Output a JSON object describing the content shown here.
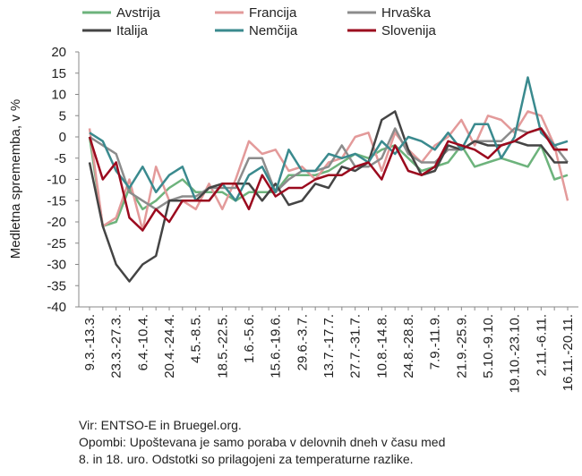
{
  "chart_data": {
    "type": "line",
    "y_label": "Medletna sprememba, v %",
    "categories": [
      "9.3.-13.3.",
      null,
      "23.3.-27.3.",
      null,
      "6.4.-10.4.",
      null,
      "20.4.-24.4.",
      null,
      "4.5.-8.5.",
      null,
      "18.5.-22.5.",
      null,
      "1.6.-5.6.",
      null,
      "15.6.-19.6.",
      null,
      "29.6.-3.7.",
      null,
      "13.7.-17.7.",
      null,
      "27.7.-31.7.",
      null,
      "10.8.-14.8.",
      null,
      "24.8.-28.8.",
      null,
      "7.9.-11.9.",
      null,
      "21.9.-25.9.",
      null,
      "5.10.-9.10.",
      null,
      "19.10.-23.10.",
      null,
      "2.11.-6.11.",
      null,
      "16.11.-20.11."
    ],
    "series": [
      {
        "name": "Avstrija",
        "color": "#6db37c",
        "values": [
          0,
          -21,
          -20,
          -12,
          -17,
          -15,
          -12,
          -10,
          -13,
          -13,
          -13,
          -15,
          -13,
          -13,
          -13,
          -9,
          -9,
          -9,
          -8,
          -6,
          -4,
          -5,
          -3,
          -2,
          -5,
          -8,
          -7,
          -6,
          -2,
          -7,
          -6,
          -5,
          -6,
          -7,
          -2,
          -10,
          -9
        ]
      },
      {
        "name": "Francija",
        "color": "#e39a9a",
        "values": [
          2,
          -21,
          -19,
          -10,
          -22,
          -7,
          -15,
          -15,
          -17,
          -11,
          -17,
          -10,
          -1,
          -4,
          -3,
          -8,
          -7,
          -10,
          -6,
          -5,
          0,
          1,
          -8,
          1,
          -3,
          -6,
          -2,
          0,
          4,
          -2,
          5,
          4,
          1,
          6,
          5,
          -2,
          -15
        ]
      },
      {
        "name": "Hrvaška",
        "color": "#8c8c8c",
        "values": [
          0,
          -2,
          -4,
          -13,
          -15,
          -17,
          -15,
          -14,
          -14,
          -12,
          -12,
          -12,
          -5,
          -5,
          -13,
          -10,
          -8,
          -8,
          -7,
          -2,
          -7,
          -7,
          -5,
          2,
          -4,
          -6,
          -6,
          -3,
          -3,
          -1,
          -1,
          -1,
          2,
          1,
          2,
          -2,
          -6
        ]
      },
      {
        "name": "Italija",
        "color": "#444444",
        "values": [
          -6,
          -21,
          -30,
          -34,
          -30,
          -28,
          -15,
          -15,
          -15,
          -12,
          -11,
          -11,
          -11,
          -15,
          -11,
          -16,
          -15,
          -11,
          -12,
          -7,
          -8,
          -6,
          4,
          6,
          -3,
          -9,
          -8,
          -2,
          -3,
          -1,
          -2,
          -2,
          -1,
          -2,
          -2,
          -6,
          -6
        ]
      },
      {
        "name": "Nemčija",
        "color": "#3a8a8e",
        "values": [
          1,
          -1,
          -8,
          -12,
          -7,
          -13,
          -9,
          -7,
          -15,
          -15,
          -11,
          -15,
          -9,
          -7,
          -13,
          -3,
          -8,
          -8,
          -4,
          -5,
          -4,
          -6,
          -1,
          -4,
          0,
          -1,
          -3,
          1,
          -3,
          3,
          3,
          -5,
          0,
          14,
          1,
          -2,
          -1
        ]
      },
      {
        "name": "Slovenija",
        "color": "#9b0a1e",
        "values": [
          0,
          -10,
          -6,
          -19,
          -22,
          -17,
          -20,
          -15,
          -15,
          -15,
          -11,
          -11,
          -17,
          -9,
          -14,
          -12,
          -12,
          -10,
          -9,
          -9,
          -7,
          -6,
          -10,
          -2,
          -8,
          -9,
          -7,
          -1,
          -2,
          -3,
          -5,
          -2,
          -1,
          1,
          2,
          -3,
          -3
        ]
      }
    ],
    "ylim": [
      -40,
      20
    ],
    "yticks": [
      -40,
      -35,
      -30,
      -25,
      -20,
      -15,
      -10,
      -5,
      0,
      5,
      10,
      15,
      20
    ],
    "notes": [
      "Vir: ENTSO-E in Bruegel.org.",
      "Opombi: Upoštevana je samo poraba v delovnih dneh v času med",
      "8. in 18. uro. Odstotki so prilagojeni za temperaturne razlike."
    ]
  }
}
